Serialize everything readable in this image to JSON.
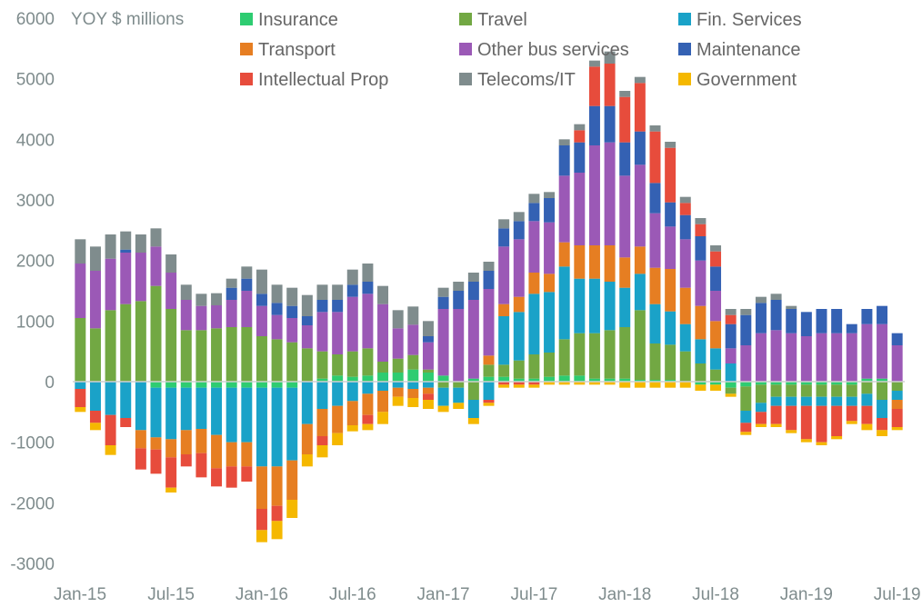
{
  "chart_data": {
    "type": "bar",
    "stacked": true,
    "title": "",
    "ylabel": "YOY $ millions",
    "xlabel": "",
    "ylim": [
      -3000,
      6000
    ],
    "yticks": [
      6000,
      5000,
      4000,
      3000,
      2000,
      1000,
      0,
      -1000,
      -2000,
      -3000
    ],
    "legend_position": "top",
    "grid": false,
    "x_tick_labels": [
      "Jan-15",
      "Jul-15",
      "Jan-16",
      "Jul-16",
      "Jan-17",
      "Jul-17",
      "Jan-18",
      "Jul-18",
      "Jan-19",
      "Jul-19"
    ],
    "x_tick_every": 6,
    "categories": [
      "Jan-15",
      "Feb-15",
      "Mar-15",
      "Apr-15",
      "May-15",
      "Jun-15",
      "Jul-15",
      "Aug-15",
      "Sep-15",
      "Oct-15",
      "Nov-15",
      "Dec-15",
      "Jan-16",
      "Feb-16",
      "Mar-16",
      "Apr-16",
      "May-16",
      "Jun-16",
      "Jul-16",
      "Aug-16",
      "Sep-16",
      "Oct-16",
      "Nov-16",
      "Dec-16",
      "Jan-17",
      "Feb-17",
      "Mar-17",
      "Apr-17",
      "May-17",
      "Jun-17",
      "Jul-17",
      "Aug-17",
      "Sep-17",
      "Oct-17",
      "Nov-17",
      "Dec-17",
      "Jan-18",
      "Feb-18",
      "Mar-18",
      "Apr-18",
      "May-18",
      "Jun-18",
      "Jul-18",
      "Aug-18",
      "Sep-18",
      "Oct-18",
      "Nov-18",
      "Dec-18",
      "Jan-19",
      "Feb-19",
      "Mar-19",
      "Apr-19",
      "May-19",
      "Jun-19",
      "Jul-19"
    ],
    "series": [
      {
        "name": "Insurance",
        "color": "#2ecc71",
        "values": [
          0,
          0,
          0,
          0,
          0,
          -100,
          -100,
          -100,
          -100,
          -100,
          -100,
          -100,
          -100,
          -100,
          -100,
          0,
          50,
          100,
          80,
          100,
          150,
          150,
          200,
          150,
          100,
          0,
          50,
          80,
          80,
          50,
          50,
          80,
          100,
          100,
          50,
          50,
          50,
          30,
          30,
          30,
          0,
          -50,
          -50,
          -100,
          -80,
          -50,
          -50,
          -50,
          -50,
          -50,
          -50,
          -50,
          50,
          50,
          0
        ]
      },
      {
        "name": "Travel",
        "color": "#72a843",
        "values": [
          1050,
          880,
          1180,
          1280,
          1330,
          1580,
          1200,
          850,
          850,
          880,
          900,
          900,
          750,
          700,
          650,
          550,
          450,
          350,
          420,
          450,
          180,
          230,
          240,
          50,
          -100,
          -100,
          -300,
          200,
          200,
          300,
          400,
          400,
          600,
          700,
          750,
          800,
          850,
          1150,
          600,
          580,
          500,
          300,
          200,
          -100,
          -400,
          -300,
          -200,
          -200,
          -200,
          -200,
          -200,
          -200,
          -200,
          -300,
          -150
        ]
      },
      {
        "name": "Fin. Services",
        "color": "#1aa2c8",
        "values": [
          -120,
          -480,
          -550,
          -600,
          -800,
          -820,
          -850,
          -700,
          -680,
          -780,
          -900,
          -900,
          -1300,
          -1300,
          -1200,
          -700,
          -450,
          -400,
          -320,
          -200,
          -150,
          -100,
          -120,
          -100,
          -300,
          -250,
          -300,
          -300,
          800,
          800,
          1000,
          1000,
          1200,
          900,
          900,
          800,
          650,
          600,
          650,
          550,
          450,
          400,
          350,
          300,
          -200,
          -150,
          -150,
          -150,
          -150,
          -150,
          -150,
          -150,
          -200,
          -300,
          -150
        ]
      },
      {
        "name": "Transport",
        "color": "#e67e22",
        "values": [
          0,
          0,
          0,
          0,
          -300,
          -200,
          -300,
          -400,
          -400,
          -550,
          -400,
          -400,
          -700,
          -650,
          -650,
          -500,
          -450,
          -450,
          -400,
          -350,
          -350,
          -150,
          -150,
          -100,
          0,
          0,
          0,
          150,
          200,
          250,
          350,
          300,
          400,
          550,
          550,
          600,
          500,
          450,
          600,
          700,
          600,
          550,
          450,
          0,
          0,
          0,
          0,
          0,
          0,
          0,
          0,
          0,
          0,
          0,
          -150
        ]
      },
      {
        "name": "Other bus services",
        "color": "#9b59b6",
        "values": [
          900,
          950,
          850,
          850,
          800,
          650,
          600,
          500,
          400,
          380,
          450,
          600,
          500,
          400,
          400,
          380,
          650,
          700,
          900,
          900,
          950,
          500,
          500,
          450,
          1100,
          1200,
          1300,
          1100,
          950,
          950,
          850,
          850,
          1100,
          1200,
          1650,
          1700,
          1350,
          1350,
          900,
          700,
          800,
          750,
          500,
          250,
          600,
          800,
          850,
          800,
          750,
          800,
          800,
          800,
          900,
          900,
          600
        ]
      },
      {
        "name": "Maintenance",
        "color": "#3461b3",
        "values": [
          0,
          0,
          0,
          50,
          0,
          0,
          0,
          0,
          0,
          0,
          200,
          200,
          200,
          200,
          200,
          150,
          200,
          200,
          200,
          200,
          0,
          0,
          0,
          100,
          200,
          300,
          300,
          300,
          300,
          300,
          300,
          400,
          500,
          500,
          650,
          600,
          550,
          550,
          500,
          400,
          400,
          400,
          400,
          400,
          500,
          500,
          500,
          400,
          400,
          400,
          400,
          150,
          250,
          300,
          200
        ]
      },
      {
        "name": "Intellectual Prop",
        "color": "#e74c3c",
        "values": [
          -300,
          -200,
          -500,
          -150,
          -350,
          -400,
          -500,
          -200,
          -400,
          -300,
          -350,
          -250,
          -350,
          -250,
          0,
          0,
          -150,
          0,
          0,
          -150,
          0,
          0,
          0,
          -100,
          0,
          0,
          0,
          -50,
          -50,
          -50,
          -50,
          0,
          0,
          200,
          650,
          700,
          750,
          800,
          850,
          900,
          200,
          200,
          250,
          150,
          -150,
          -200,
          -300,
          -400,
          -550,
          -600,
          -500,
          -250,
          -300,
          -200,
          -300
        ]
      },
      {
        "name": "Telecoms/IT",
        "color": "#7f8c8d",
        "values": [
          400,
          400,
          400,
          300,
          300,
          300,
          300,
          250,
          200,
          200,
          150,
          200,
          400,
          300,
          300,
          350,
          250,
          250,
          250,
          300,
          300,
          300,
          300,
          250,
          150,
          150,
          150,
          150,
          150,
          150,
          150,
          100,
          100,
          100,
          100,
          200,
          100,
          100,
          100,
          100,
          100,
          100,
          100,
          100,
          100,
          100,
          100,
          50,
          0,
          0,
          0,
          0,
          0,
          0,
          0
        ]
      },
      {
        "name": "Government",
        "color": "#f5b800",
        "values": [
          -80,
          -120,
          -160,
          0,
          0,
          0,
          -80,
          0,
          0,
          0,
          0,
          0,
          -200,
          -300,
          -300,
          -200,
          -200,
          -200,
          -100,
          -100,
          -200,
          -150,
          -150,
          -150,
          -100,
          -100,
          -100,
          -50,
          -50,
          -50,
          -50,
          -50,
          -50,
          -50,
          -50,
          -50,
          -100,
          -100,
          -100,
          -100,
          -100,
          -100,
          -100,
          -50,
          -50,
          -50,
          -50,
          -50,
          -50,
          -50,
          -50,
          -50,
          -100,
          -100,
          -50
        ]
      }
    ]
  }
}
